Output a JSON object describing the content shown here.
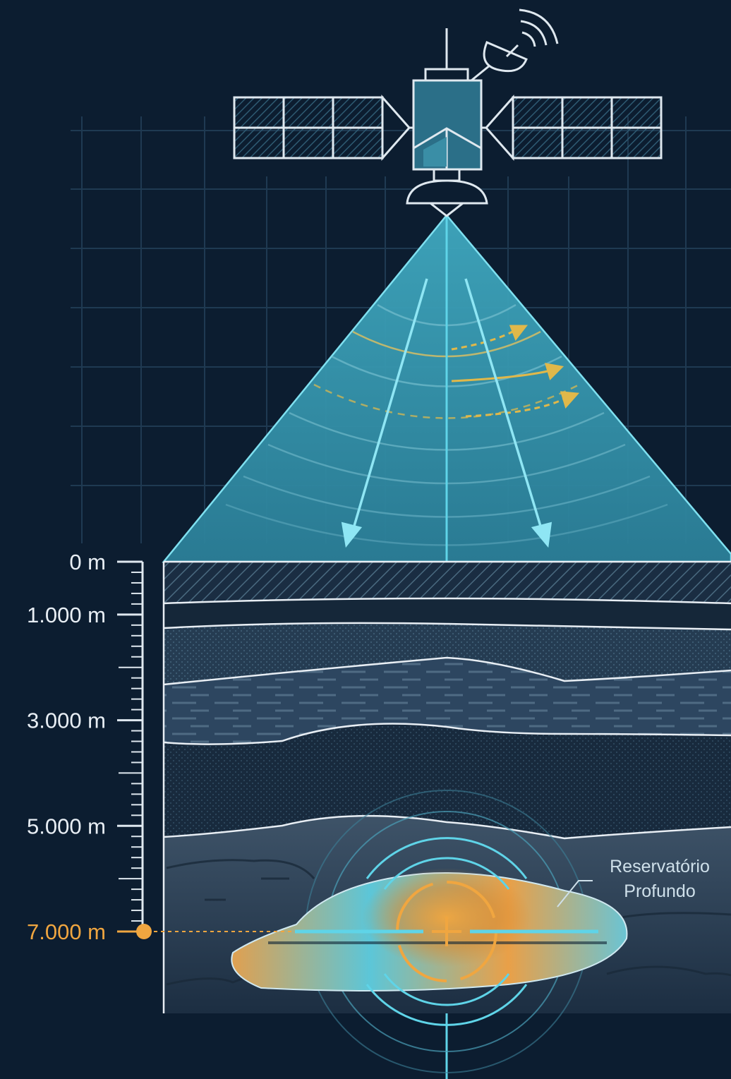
{
  "depth_scale": {
    "unit": "m",
    "ticks": [
      {
        "label": "0 m",
        "depth": 0
      },
      {
        "label": "1.000 m",
        "depth": 1000
      },
      {
        "label": "3.000 m",
        "depth": 3000
      },
      {
        "label": "5.000 m",
        "depth": 5000
      },
      {
        "label": "7.000 m",
        "depth": 7000,
        "highlight": true
      }
    ],
    "max_depth": 8500
  },
  "reservoir": {
    "label_line1": "Reservatório",
    "label_line2": "Profundo",
    "depth": 7000
  },
  "colors": {
    "background": "#0c1d30",
    "beam": "#3a9fb4",
    "cyan": "#3cc8e0",
    "accent_orange": "#f0a640",
    "line_white": "#e8eef4"
  },
  "icons": [
    "satellite-icon",
    "antenna-dish-icon",
    "signal-waves-icon",
    "target-crosshair-icon"
  ]
}
